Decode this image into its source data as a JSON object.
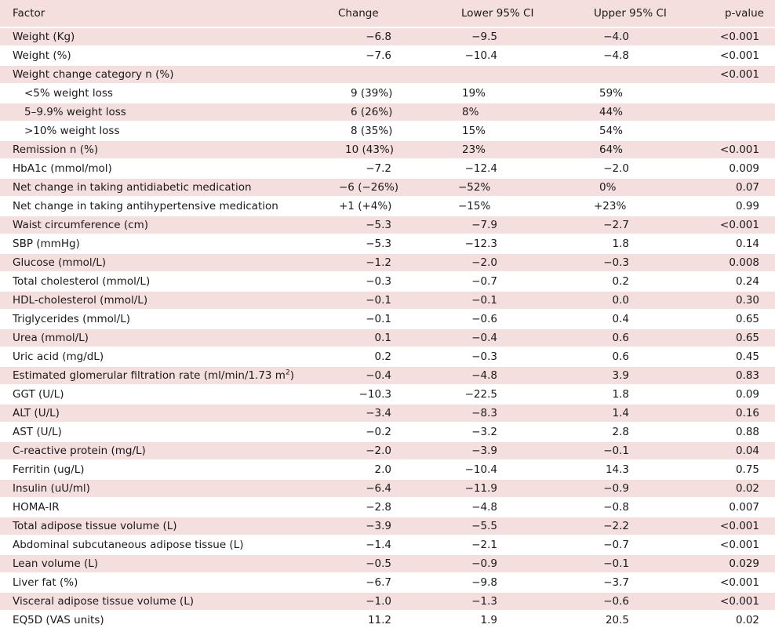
{
  "header": {
    "factor": "Factor",
    "change": "Change",
    "lower": "Lower 95% CI",
    "upper": "Upper 95% CI",
    "p": "p-value"
  },
  "rows": [
    {
      "factor": "Weight (Kg)",
      "change": "−6.8",
      "lower": "−9.5",
      "upper": "−4.0",
      "p": "<0.001",
      "align": "num",
      "indent": false
    },
    {
      "factor": "Weight (%)",
      "change": "−7.6",
      "lower": "−10.4",
      "upper": "−4.8",
      "p": "<0.001",
      "align": "num",
      "indent": false
    },
    {
      "factor": "Weight change category n (%)",
      "change": "",
      "lower": "",
      "upper": "",
      "p": "<0.001",
      "align": "num",
      "indent": false
    },
    {
      "factor": "<5% weight loss",
      "change": "9 (39%)",
      "lower": "19%",
      "upper": "59%",
      "p": "",
      "align": "left",
      "indent": true
    },
    {
      "factor": "5–9.9% weight loss",
      "change": "6 (26%)",
      "lower": "8%",
      "upper": "44%",
      "p": "",
      "align": "left",
      "indent": true
    },
    {
      "factor": ">10% weight loss",
      "change": "8 (35%)",
      "lower": "15%",
      "upper": "54%",
      "p": "",
      "align": "left",
      "indent": true
    },
    {
      "factor": "Remission n (%)",
      "change": "10 (43%)",
      "lower": "23%",
      "upper": "64%",
      "p": "<0.001",
      "align": "left-wide",
      "indent": false
    },
    {
      "factor": "HbA1c (mmol/mol)",
      "change": "−7.2",
      "lower": "−12.4",
      "upper": "−2.0",
      "p": "0.009",
      "align": "num",
      "indent": false
    },
    {
      "factor": "Net change in taking antidiabetic medication",
      "change": "−6 (−26%)",
      "lower": "−52%",
      "upper": "0%",
      "p": "0.07",
      "align": "left-mixed",
      "indent": false
    },
    {
      "factor": "Net change in taking antihypertensive medication",
      "change": "+1 (+4%)",
      "lower": "−15%",
      "upper": "+23%",
      "p": "0.99",
      "align": "left-mixed",
      "indent": false
    },
    {
      "factor": "Waist circumference (cm)",
      "change": "−5.3",
      "lower": "−7.9",
      "upper": "−2.7",
      "p": "<0.001",
      "align": "num",
      "indent": false
    },
    {
      "factor": "SBP (mmHg)",
      "change": "−5.3",
      "lower": "−12.3",
      "upper": "1.8",
      "p": "0.14",
      "align": "num",
      "indent": false
    },
    {
      "factor": "Glucose (mmol/L)",
      "change": "−1.2",
      "lower": "−2.0",
      "upper": "−0.3",
      "p": "0.008",
      "align": "num",
      "indent": false
    },
    {
      "factor": "Total cholesterol (mmol/L)",
      "change": "−0.3",
      "lower": "−0.7",
      "upper": "0.2",
      "p": "0.24",
      "align": "num",
      "indent": false
    },
    {
      "factor": "HDL-cholesterol (mmol/L)",
      "change": "−0.1",
      "lower": "−0.1",
      "upper": "0.0",
      "p": "0.30",
      "align": "num",
      "indent": false
    },
    {
      "factor": "Triglycerides (mmol/L)",
      "change": "−0.1",
      "lower": "−0.6",
      "upper": "0.4",
      "p": "0.65",
      "align": "num",
      "indent": false
    },
    {
      "factor": "Urea (mmol/L)",
      "change": "0.1",
      "lower": "−0.4",
      "upper": "0.6",
      "p": "0.65",
      "align": "num",
      "indent": false
    },
    {
      "factor": "Uric acid (mg/dL)",
      "change": "0.2",
      "lower": "−0.3",
      "upper": "0.6",
      "p": "0.45",
      "align": "num",
      "indent": false
    },
    {
      "factor": "Estimated glomerular filtration rate (ml/min/1.73 m",
      "factor_sup": "2",
      "factor_tail": ")",
      "change": "−0.4",
      "lower": "−4.8",
      "upper": "3.9",
      "p": "0.83",
      "align": "num",
      "indent": false
    },
    {
      "factor": "GGT (U/L)",
      "change": "−10.3",
      "lower": "−22.5",
      "upper": "1.8",
      "p": "0.09",
      "align": "num",
      "indent": false
    },
    {
      "factor": "ALT (U/L)",
      "change": "−3.4",
      "lower": "−8.3",
      "upper": "1.4",
      "p": "0.16",
      "align": "num",
      "indent": false
    },
    {
      "factor": "AST (U/L)",
      "change": "−0.2",
      "lower": "−3.2",
      "upper": "2.8",
      "p": "0.88",
      "align": "num",
      "indent": false
    },
    {
      "factor": "C-reactive protein (mg/L)",
      "change": "−2.0",
      "lower": "−3.9",
      "upper": "−0.1",
      "p": "0.04",
      "align": "num",
      "indent": false
    },
    {
      "factor": "Ferritin (ug/L)",
      "change": "2.0",
      "lower": "−10.4",
      "upper": "14.3",
      "p": "0.75",
      "align": "num",
      "indent": false
    },
    {
      "factor": "Insulin (uU/ml)",
      "change": "−6.4",
      "lower": "−11.9",
      "upper": "−0.9",
      "p": "0.02",
      "align": "num",
      "indent": false
    },
    {
      "factor": "HOMA-IR",
      "change": "−2.8",
      "lower": "−4.8",
      "upper": "−0.8",
      "p": "0.007",
      "align": "num",
      "indent": false
    },
    {
      "factor": "Total adipose tissue volume (L)",
      "change": "−3.9",
      "lower": "−5.5",
      "upper": "−2.2",
      "p": "<0.001",
      "align": "num",
      "indent": false
    },
    {
      "factor": "Abdominal subcutaneous adipose tissue (L)",
      "change": "−1.4",
      "lower": "−2.1",
      "upper": "−0.7",
      "p": "<0.001",
      "align": "num",
      "indent": false
    },
    {
      "factor": "Lean volume (L)",
      "change": "−0.5",
      "lower": "−0.9",
      "upper": "−0.1",
      "p": "0.029",
      "align": "num",
      "indent": false
    },
    {
      "factor": "Liver fat (%)",
      "change": "−6.7",
      "lower": "−9.8",
      "upper": "−3.7",
      "p": "<0.001",
      "align": "num",
      "indent": false
    },
    {
      "factor": "Visceral adipose tissue volume (L)",
      "change": "−1.0",
      "lower": "−1.3",
      "upper": "−0.6",
      "p": "<0.001",
      "align": "num",
      "indent": false
    },
    {
      "factor": "EQ5D (VAS units)",
      "change": "11.2",
      "lower": "1.9",
      "upper": "20.5",
      "p": "0.02",
      "align": "num",
      "indent": false
    }
  ]
}
